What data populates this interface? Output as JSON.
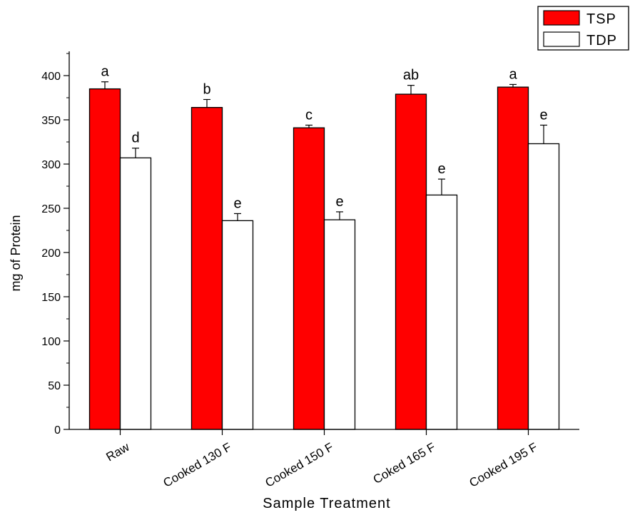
{
  "chart_data": {
    "type": "bar",
    "title": "",
    "xlabel": "Sample Treatment",
    "ylabel": "mg of Protein",
    "ylim": [
      0,
      420
    ],
    "yticks": [
      0,
      50,
      100,
      150,
      200,
      250,
      300,
      350,
      400
    ],
    "grid": false,
    "legend_position": "top-right",
    "categories": [
      "Raw",
      "Cooked 130 F",
      "Cooked 150 F",
      "Coked 165 F",
      "Cooked 195 F"
    ],
    "series": [
      {
        "name": "TSP",
        "color": "#ff0000",
        "values": [
          385,
          364,
          341,
          379,
          387
        ],
        "errors": [
          8,
          9,
          3,
          10,
          3
        ],
        "labels": [
          "a",
          "b",
          "c",
          "ab",
          "a"
        ]
      },
      {
        "name": "TDP",
        "color": "#ffffff",
        "values": [
          307,
          236,
          237,
          265,
          323
        ],
        "errors": [
          11,
          8,
          9,
          18,
          21
        ],
        "labels": [
          "d",
          "e",
          "e",
          "e",
          "e"
        ]
      }
    ]
  }
}
